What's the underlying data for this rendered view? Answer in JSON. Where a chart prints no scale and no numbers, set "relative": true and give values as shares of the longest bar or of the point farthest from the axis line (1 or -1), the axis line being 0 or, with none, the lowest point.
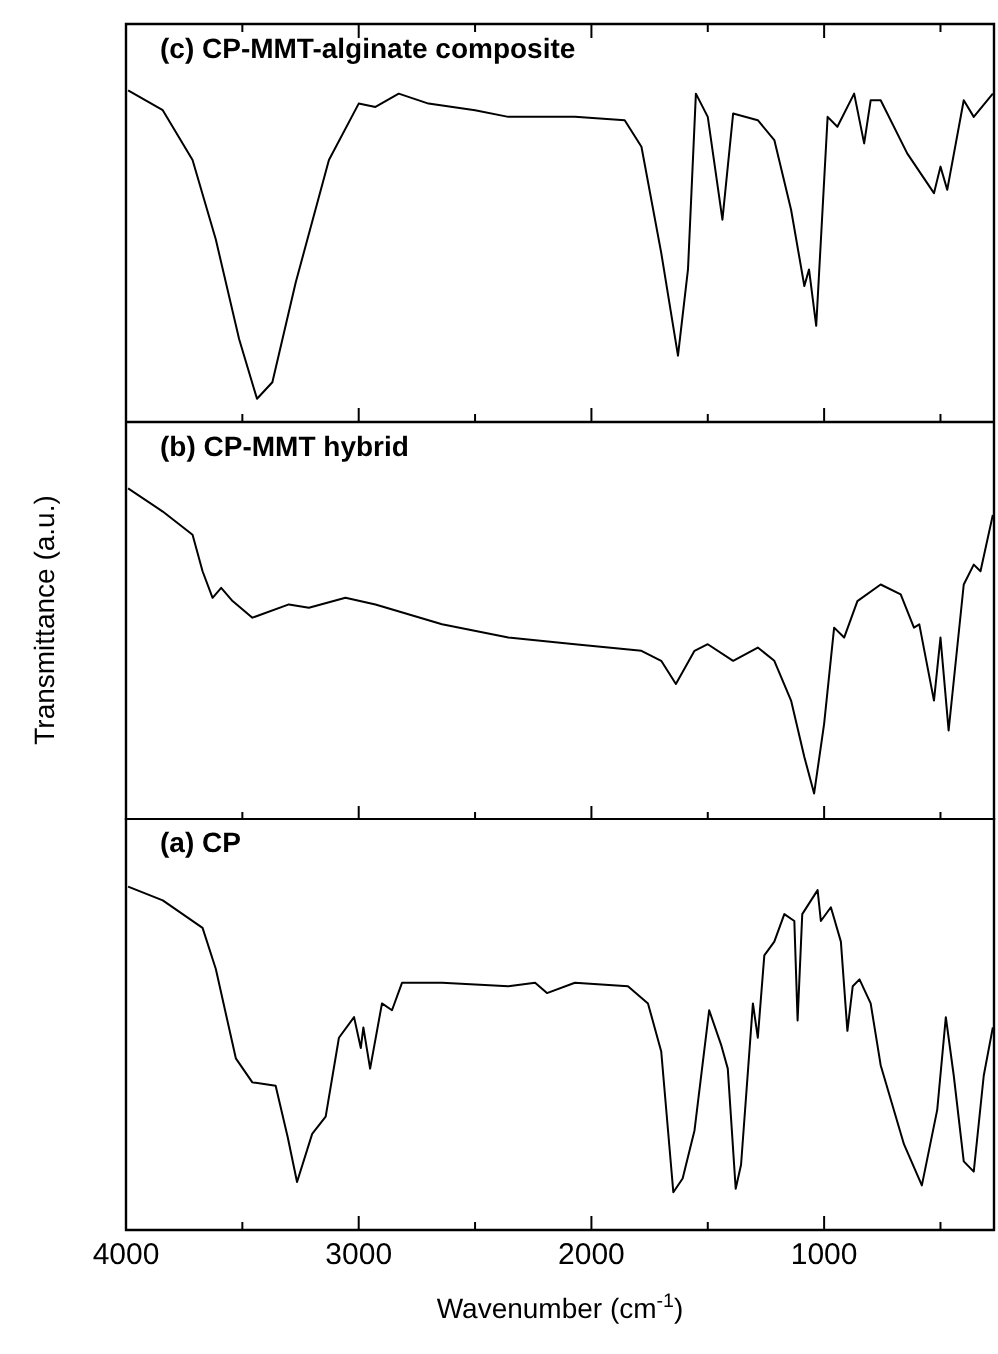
{
  "chart_data": [
    {
      "type": "line",
      "title": "(c) CP-MMT-alginate composite",
      "relative": true,
      "tick_labels": false,
      "color": "#000000",
      "xlim": [
        4000,
        270
      ],
      "xticks": [
        4000,
        {
          "value": 3500,
          "label": null
        },
        3000,
        {
          "value": 2500,
          "label": null
        },
        2000,
        {
          "value": 1500,
          "label": null
        },
        1000,
        {
          "value": 500,
          "label": null
        }
      ],
      "x": [
        3991,
        3842,
        3714,
        3614,
        3514,
        3437,
        3371,
        3271,
        3128,
        3000,
        2928,
        2828,
        2700,
        2500,
        2357,
        2214,
        2071,
        1857,
        1785,
        1700,
        1628,
        1585,
        1551,
        1500,
        1437,
        1391,
        1285,
        1214,
        1142,
        1085,
        1065,
        1034,
        985,
        943,
        871,
        828,
        800,
        757,
        643,
        528,
        500,
        471,
        400,
        357,
        275
      ],
      "values": [
        1,
        0.94,
        0.79,
        0.55,
        0.25,
        0.07,
        0.12,
        0.42,
        0.79,
        0.96,
        0.95,
        0.99,
        0.96,
        0.94,
        0.92,
        0.92,
        0.92,
        0.91,
        0.83,
        0.51,
        0.2,
        0.46,
        0.99,
        0.92,
        0.61,
        0.93,
        0.91,
        0.85,
        0.64,
        0.41,
        0.46,
        0.29,
        0.92,
        0.89,
        0.99,
        0.84,
        0.97,
        0.97,
        0.81,
        0.69,
        0.77,
        0.7,
        0.97,
        0.92,
        0.99
      ]
    },
    {
      "type": "line",
      "title": "(b) CP-MMT hybrid",
      "ylabel": "Transmittance (a.u.)",
      "relative": true,
      "tick_labels": false,
      "color": "#000000",
      "xlim": [
        4000,
        270
      ],
      "xticks": [
        4000,
        {
          "value": 3500,
          "label": null
        },
        3000,
        {
          "value": 2500,
          "label": null
        },
        2000,
        {
          "value": 1500,
          "label": null
        },
        1000,
        {
          "value": 500,
          "label": null
        }
      ],
      "x": [
        3991,
        3842,
        3714,
        3671,
        3628,
        3591,
        3542,
        3457,
        3300,
        3214,
        3057,
        2928,
        2642,
        2357,
        2071,
        1785,
        1700,
        1637,
        1557,
        1500,
        1391,
        1285,
        1214,
        1142,
        1085,
        1043,
        1000,
        957,
        914,
        857,
        757,
        671,
        614,
        591,
        528,
        500,
        465,
        400,
        357,
        328,
        275
      ],
      "values": [
        1,
        0.93,
        0.86,
        0.75,
        0.67,
        0.7,
        0.66,
        0.61,
        0.65,
        0.64,
        0.67,
        0.65,
        0.59,
        0.55,
        0.53,
        0.51,
        0.48,
        0.41,
        0.51,
        0.53,
        0.48,
        0.52,
        0.48,
        0.36,
        0.19,
        0.08,
        0.29,
        0.58,
        0.55,
        0.66,
        0.71,
        0.68,
        0.58,
        0.59,
        0.36,
        0.55,
        0.27,
        0.71,
        0.77,
        0.75,
        0.92
      ]
    },
    {
      "type": "line",
      "title": "(a) CP",
      "xlabel": "Wavenumber (cm$^{-1}$)",
      "relative": true,
      "tick_labels": "x",
      "color": "#000000",
      "xlim": [
        4000,
        270
      ],
      "xticks": [
        4000,
        {
          "value": 3500,
          "label": null
        },
        3000,
        {
          "value": 2500,
          "label": null
        },
        2000,
        {
          "value": 1500,
          "label": null
        },
        1000,
        {
          "value": 500,
          "label": null
        }
      ],
      "x": [
        3991,
        3842,
        3671,
        3614,
        3528,
        3457,
        3357,
        3305,
        3265,
        3200,
        3142,
        3085,
        3020,
        2991,
        2980,
        2951,
        2900,
        2857,
        2814,
        2642,
        2357,
        2242,
        2191,
        2071,
        1843,
        1757,
        1700,
        1648,
        1608,
        1557,
        1494,
        1443,
        1414,
        1380,
        1357,
        1306,
        1285,
        1257,
        1214,
        1171,
        1128,
        1114,
        1094,
        1028,
        1014,
        971,
        928,
        900,
        877,
        848,
        800,
        757,
        657,
        580,
        514,
        477,
        443,
        400,
        357,
        314,
        275
      ],
      "values": [
        1,
        0.96,
        0.88,
        0.76,
        0.5,
        0.43,
        0.42,
        0.27,
        0.14,
        0.28,
        0.33,
        0.56,
        0.62,
        0.53,
        0.59,
        0.47,
        0.66,
        0.64,
        0.72,
        0.72,
        0.71,
        0.72,
        0.69,
        0.72,
        0.71,
        0.66,
        0.52,
        0.11,
        0.15,
        0.29,
        0.64,
        0.54,
        0.47,
        0.12,
        0.19,
        0.66,
        0.56,
        0.8,
        0.84,
        0.92,
        0.9,
        0.61,
        0.92,
        0.99,
        0.9,
        0.94,
        0.84,
        0.58,
        0.71,
        0.73,
        0.66,
        0.48,
        0.25,
        0.13,
        0.35,
        0.62,
        0.45,
        0.2,
        0.17,
        0.45,
        0.59
      ]
    }
  ]
}
